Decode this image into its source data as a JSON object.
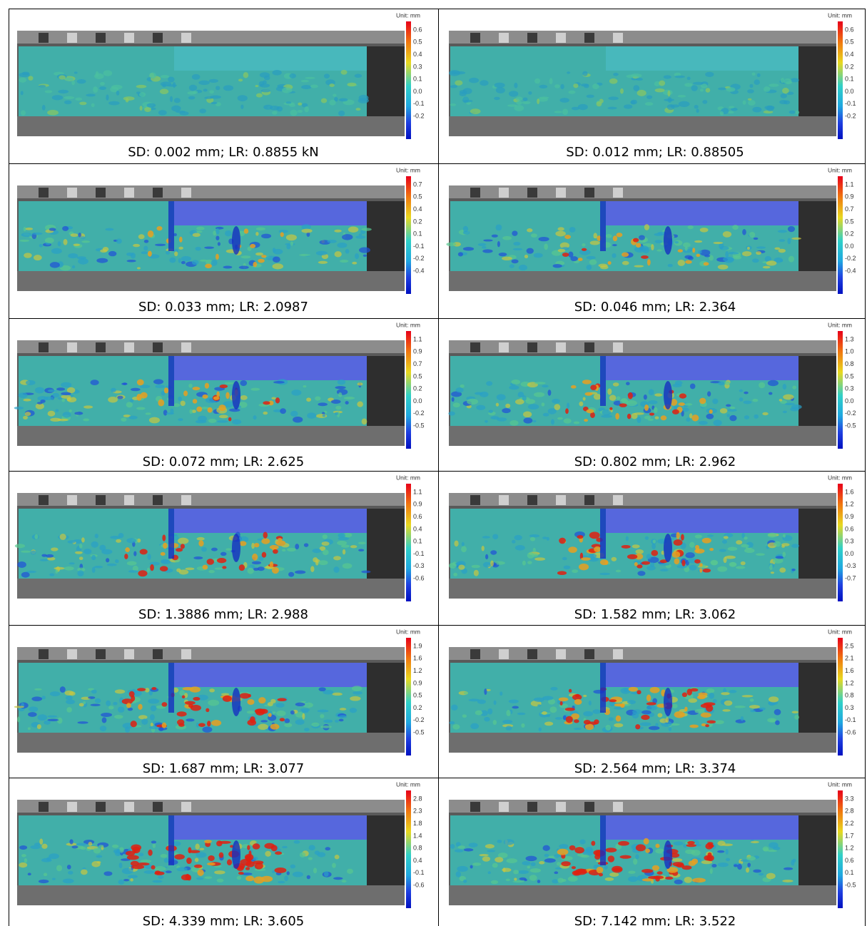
{
  "panels": [
    {
      "unit": "Unit: mm",
      "colorbar_labels": [
        "0.6",
        "0.5",
        "0.4",
        "0.3",
        "0.1",
        "0.0",
        "-0.1",
        "-0.2"
      ],
      "caption": "SD: 0.002 mm; LR: 0.8855 kN"
    },
    {
      "unit": "Unit: mm",
      "colorbar_labels": [
        "0.6",
        "0.5",
        "0.4",
        "0.2",
        "0.1",
        "0.0",
        "-0.1",
        "-0.2"
      ],
      "caption": "SD: 0.012 mm; LR: 0.88505"
    },
    {
      "unit": "Unit: mm",
      "colorbar_labels": [
        "0.7",
        "0.5",
        "0.4",
        "0.2",
        "0.1",
        "-0.1",
        "-0.2",
        "-0.4"
      ],
      "caption": "SD: 0.033 mm; LR: 2.0987"
    },
    {
      "unit": "Unit: mm",
      "colorbar_labels": [
        "1.1",
        "0.9",
        "0.7",
        "0.5",
        "0.2",
        "0.0",
        "-0.2",
        "-0.4"
      ],
      "caption": "SD: 0.046 mm; LR: 2.364"
    },
    {
      "unit": "Unit: mm",
      "colorbar_labels": [
        "1.1",
        "0.9",
        "0.7",
        "0.5",
        "0.2",
        "0.0",
        "-0.2",
        "-0.5"
      ],
      "caption": "SD: 0.072 mm; LR: 2.625"
    },
    {
      "unit": "Unit: mm",
      "colorbar_labels": [
        "1.3",
        "1.0",
        "0.8",
        "0.5",
        "0.3",
        "0.0",
        "-0.2",
        "-0.5"
      ],
      "caption": "SD: 0.802 mm; LR: 2.962"
    },
    {
      "unit": "Unit: mm",
      "colorbar_labels": [
        "1.1",
        "0.9",
        "0.6",
        "0.4",
        "0.1",
        "-0.1",
        "-0.3",
        "-0.6"
      ],
      "caption": "SD: 1.3886 mm; LR: 2.988"
    },
    {
      "unit": "Unit: mm",
      "colorbar_labels": [
        "1.6",
        "1.2",
        "0.9",
        "0.6",
        "0.3",
        "0.0",
        "-0.3",
        "-0.7"
      ],
      "caption": "SD: 1.582 mm; LR: 3.062"
    },
    {
      "unit": "Unit: mm",
      "colorbar_labels": [
        "1.9",
        "1.6",
        "1.2",
        "0.9",
        "0.5",
        "0.2",
        "-0.2",
        "-0.5"
      ],
      "caption": "SD: 1.687 mm; LR: 3.077"
    },
    {
      "unit": "Unit: mm",
      "colorbar_labels": [
        "2.5",
        "2.1",
        "1.6",
        "1.2",
        "0.8",
        "0.3",
        "-0.1",
        "-0.6"
      ],
      "caption": "SD: 2.564 mm; LR: 3.374"
    },
    {
      "unit": "Unit: mm",
      "colorbar_labels": [
        "2.8",
        "2.3",
        "1.8",
        "1.4",
        "0.8",
        "0.4",
        "-0.1",
        "-0.6"
      ],
      "caption": "SD: 4.339 mm; LR: 3.605"
    },
    {
      "unit": "Unit: mm",
      "colorbar_labels": [
        "3.3",
        "2.8",
        "2.2",
        "1.7",
        "1.2",
        "0.6",
        "0.1",
        "-0.5"
      ],
      "caption": "SD: 7.142 mm; LR: 3.522"
    }
  ]
}
